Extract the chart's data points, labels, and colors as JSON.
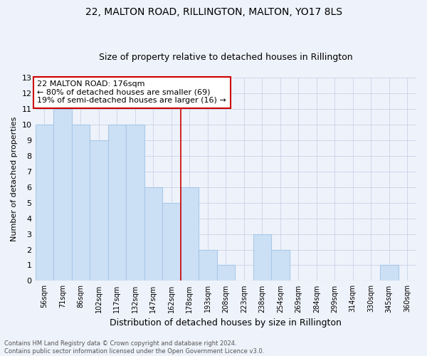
{
  "title": "22, MALTON ROAD, RILLINGTON, MALTON, YO17 8LS",
  "subtitle": "Size of property relative to detached houses in Rillington",
  "xlabel": "Distribution of detached houses by size in Rillington",
  "ylabel": "Number of detached properties",
  "categories": [
    "56sqm",
    "71sqm",
    "86sqm",
    "102sqm",
    "117sqm",
    "132sqm",
    "147sqm",
    "162sqm",
    "178sqm",
    "193sqm",
    "208sqm",
    "223sqm",
    "238sqm",
    "254sqm",
    "269sqm",
    "284sqm",
    "299sqm",
    "314sqm",
    "330sqm",
    "345sqm",
    "360sqm"
  ],
  "values": [
    10,
    11,
    10,
    9,
    10,
    10,
    6,
    5,
    6,
    2,
    1,
    0,
    3,
    2,
    0,
    0,
    0,
    0,
    0,
    1,
    0
  ],
  "bar_color": "#cce0f5",
  "bar_edge_color": "#a8c8e8",
  "ylim": [
    0,
    13
  ],
  "yticks": [
    0,
    1,
    2,
    3,
    4,
    5,
    6,
    7,
    8,
    9,
    10,
    11,
    12,
    13
  ],
  "vline_index": 7.5,
  "annotation_line1": "22 MALTON ROAD: 176sqm",
  "annotation_line2": "← 80% of detached houses are smaller (69)",
  "annotation_line3": "19% of semi-detached houses are larger (16) →",
  "annotation_box_color": "#ffffff",
  "annotation_box_edge_color": "#cc0000",
  "grid_color": "#c8d4e8",
  "vline_color": "#cc0000",
  "footer_line1": "Contains HM Land Registry data © Crown copyright and database right 2024.",
  "footer_line2": "Contains public sector information licensed under the Open Government Licence v3.0.",
  "background_color": "#eef2fa",
  "title_fontsize": 10,
  "subtitle_fontsize": 9
}
